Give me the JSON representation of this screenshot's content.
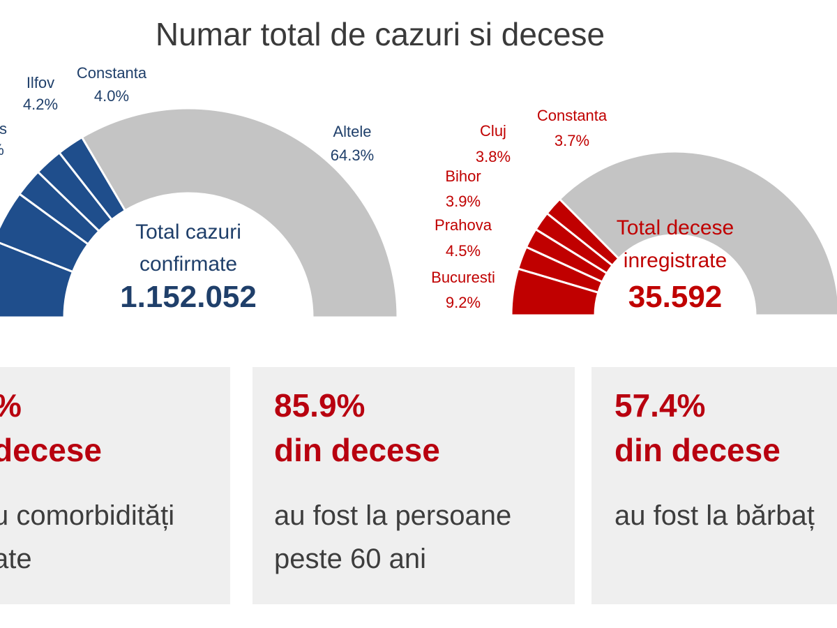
{
  "title": "Numar total de cazuri si decese",
  "chart_data": [
    {
      "type": "pie",
      "variant": "half-donut",
      "color": "#1f4e8c",
      "other_color": "#c4c4c4",
      "center_label_line1": "Total cazuri",
      "center_label_line2": "confirmate",
      "total": "1.152.052",
      "slices": [
        {
          "label": "",
          "pct_text": "",
          "value": 11.5
        },
        {
          "label": "",
          "pct_text": "",
          "value": 7.8
        },
        {
          "label": "nis",
          "pct_text": "%",
          "value": 4.2
        },
        {
          "label": "Ilfov",
          "pct_text": "4.2%",
          "value": 4.2
        },
        {
          "label": "Constanta",
          "pct_text": "4.0%",
          "value": 4.0
        },
        {
          "label": "Altele",
          "pct_text": "64.3%",
          "value": 64.3
        }
      ]
    },
    {
      "type": "pie",
      "variant": "half-donut",
      "color": "#c00000",
      "other_color": "#c4c4c4",
      "center_label_line1": "Total decese",
      "center_label_line2": "inregistrate",
      "total": "35.592",
      "slices": [
        {
          "label": "Bucuresti",
          "pct_text": "9.2%",
          "value": 9.2
        },
        {
          "label": "Prahova",
          "pct_text": "4.5%",
          "value": 4.5
        },
        {
          "label": "Bihor",
          "pct_text": "3.9%",
          "value": 3.9
        },
        {
          "label": "Cluj",
          "pct_text": "3.8%",
          "value": 3.8
        },
        {
          "label": "Constanta",
          "pct_text": "3.7%",
          "value": 3.7
        },
        {
          "label": "",
          "pct_text": "",
          "value": 74.9
        }
      ]
    }
  ],
  "cards": [
    {
      "pct": "%",
      "line2": "decese",
      "desc1": "u comorbidități",
      "desc2": "ate"
    },
    {
      "pct": "85.9%",
      "line2": "din decese",
      "desc1": "au fost la persoane",
      "desc2": "peste 60 ani"
    },
    {
      "pct": "57.4%",
      "line2": "din decese",
      "desc1": "au fost la bărbaț",
      "desc2": ""
    }
  ]
}
